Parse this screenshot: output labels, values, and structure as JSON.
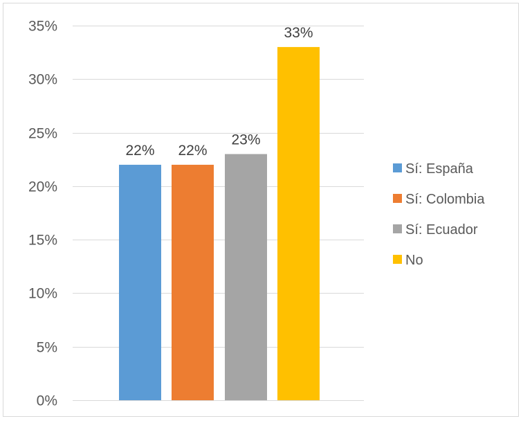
{
  "chart_data": {
    "type": "bar",
    "categories": [
      "Sí: España",
      "Sí: Colombia",
      "Sí: Ecuador",
      "No"
    ],
    "values": [
      22,
      22,
      23,
      33
    ],
    "data_labels": [
      "22%",
      "22%",
      "23%",
      "33%"
    ],
    "colors": [
      "#5b9bd5",
      "#ed7d31",
      "#a5a5a5",
      "#ffc000"
    ],
    "ylim": [
      0,
      35
    ],
    "y_ticks": [
      0,
      5,
      10,
      15,
      20,
      25,
      30,
      35
    ],
    "y_tick_labels": [
      "0%",
      "5%",
      "10%",
      "15%",
      "20%",
      "25%",
      "30%",
      "35%"
    ],
    "grid": true,
    "legend": {
      "placement": "right",
      "entries": [
        "Sí: España",
        "Sí: Colombia",
        "Sí: Ecuador",
        "No"
      ]
    },
    "gridline_color": "#d9d9d9"
  }
}
